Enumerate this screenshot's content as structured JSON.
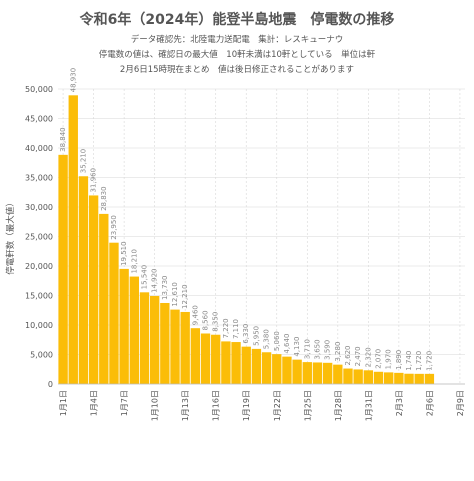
{
  "title": "令和6年（2024年）能登半島地震　停電数の推移",
  "subtitle_lines": [
    "データ確認先：北陸電力送配電　集計：レスキューナウ",
    "停電数の値は、確認日の最大値　10軒未満は10軒としている　単位は軒",
    "2月6日15時現在まとめ　値は後日修正されることがあります"
  ],
  "chart_data": {
    "type": "bar",
    "ylabel": "停電軒数（最大値）",
    "ylim": [
      0,
      50000
    ],
    "yticks": [
      0,
      5000,
      10000,
      15000,
      20000,
      25000,
      30000,
      35000,
      40000,
      45000,
      50000
    ],
    "ytick_labels": [
      "0",
      "5,000",
      "10,000",
      "15,000",
      "20,000",
      "25,000",
      "30,000",
      "35,000",
      "40,000",
      "45,000",
      "50,000"
    ],
    "x_tick_labels": [
      "1月1日",
      "1月4日",
      "1月7日",
      "1月10日",
      "1月13日",
      "1月16日",
      "1月19日",
      "1月22日",
      "1月25日",
      "1月28日",
      "1月31日",
      "2月3日",
      "2月6日",
      "2月9日"
    ],
    "x_tick_every": 3,
    "num_slots": 40,
    "grid": true,
    "bar_color": "#fbbd08",
    "values": [
      38840,
      48930,
      35210,
      31960,
      28830,
      23950,
      19510,
      18210,
      15540,
      14920,
      13730,
      12610,
      12210,
      9460,
      8560,
      8350,
      7220,
      7110,
      6330,
      5950,
      5380,
      5060,
      4640,
      4130,
      3710,
      3650,
      3590,
      3280,
      2620,
      2470,
      2320,
      2070,
      1970,
      1890,
      1740,
      1720,
      1720
    ],
    "value_labels": [
      "38,840",
      "48,930",
      "35,210",
      "31,960",
      "28,830",
      "23,950",
      "19,510",
      "18,210",
      "15,540",
      "14,920",
      "13,730",
      "12,610",
      "12,210",
      "9,460",
      "8,560",
      "8,350",
      "7,220",
      "7,110",
      "6,330",
      "5,950",
      "5,380",
      "5,060",
      "4,640",
      "4,130",
      "3,710",
      "3,650",
      "3,590",
      "3,280",
      "2,620",
      "2,470",
      "2,320",
      "2,070",
      "1,970",
      "1,890",
      "1,740",
      "1,720",
      "1,720"
    ]
  }
}
